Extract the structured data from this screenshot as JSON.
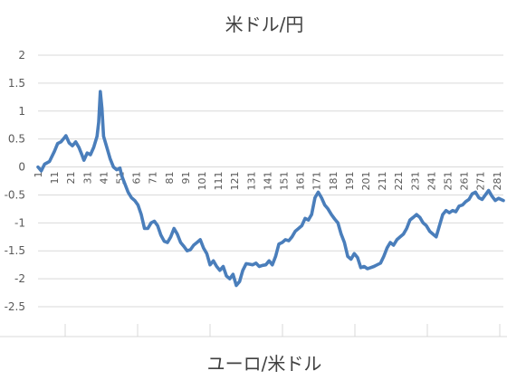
{
  "chart_data": [
    {
      "type": "line",
      "title": "米ドル/円",
      "xlabel": "",
      "ylabel": "",
      "ylim": [
        -2.5,
        2
      ],
      "yticks": [
        "2",
        "1.5",
        "1",
        "0.5",
        "0",
        "-0.5",
        "-1",
        "-1.5",
        "-2",
        "-2.5"
      ],
      "grid": true,
      "legend": "none",
      "x_start": 1,
      "x_end": 285,
      "x_tick_labels": [
        "1",
        "11",
        "21",
        "31",
        "41",
        "51",
        "61",
        "71",
        "81",
        "91",
        "101",
        "111",
        "121",
        "131",
        "141",
        "151",
        "161",
        "171",
        "181",
        "191",
        "201",
        "211",
        "221",
        "231",
        "241",
        "251",
        "261",
        "271",
        "281"
      ],
      "series": [
        {
          "color": "#4a7ebb",
          "points": [
            [
              1,
              0.0
            ],
            [
              3,
              -0.07
            ],
            [
              5,
              0.05
            ],
            [
              8,
              0.1
            ],
            [
              11,
              0.28
            ],
            [
              13,
              0.42
            ],
            [
              15,
              0.45
            ],
            [
              17,
              0.52
            ],
            [
              18,
              0.56
            ],
            [
              20,
              0.43
            ],
            [
              22,
              0.38
            ],
            [
              24,
              0.45
            ],
            [
              26,
              0.35
            ],
            [
              28,
              0.2
            ],
            [
              29,
              0.12
            ],
            [
              31,
              0.25
            ],
            [
              33,
              0.22
            ],
            [
              35,
              0.35
            ],
            [
              37,
              0.55
            ],
            [
              38,
              0.8
            ],
            [
              39,
              1.35
            ],
            [
              40,
              1.05
            ],
            [
              41,
              0.55
            ],
            [
              43,
              0.35
            ],
            [
              45,
              0.15
            ],
            [
              47,
              0.0
            ],
            [
              49,
              -0.05
            ],
            [
              51,
              -0.02
            ],
            [
              52,
              -0.15
            ],
            [
              54,
              -0.3
            ],
            [
              56,
              -0.45
            ],
            [
              58,
              -0.55
            ],
            [
              60,
              -0.6
            ],
            [
              62,
              -0.68
            ],
            [
              64,
              -0.85
            ],
            [
              66,
              -1.1
            ],
            [
              68,
              -1.1
            ],
            [
              70,
              -1.0
            ],
            [
              72,
              -0.97
            ],
            [
              74,
              -1.05
            ],
            [
              76,
              -1.22
            ],
            [
              78,
              -1.33
            ],
            [
              80,
              -1.35
            ],
            [
              82,
              -1.25
            ],
            [
              84,
              -1.1
            ],
            [
              86,
              -1.2
            ],
            [
              88,
              -1.35
            ],
            [
              90,
              -1.42
            ],
            [
              92,
              -1.5
            ],
            [
              94,
              -1.48
            ],
            [
              96,
              -1.4
            ],
            [
              98,
              -1.35
            ],
            [
              100,
              -1.3
            ],
            [
              102,
              -1.45
            ],
            [
              104,
              -1.55
            ],
            [
              106,
              -1.75
            ],
            [
              108,
              -1.68
            ],
            [
              110,
              -1.78
            ],
            [
              112,
              -1.85
            ],
            [
              114,
              -1.78
            ],
            [
              116,
              -1.95
            ],
            [
              118,
              -2.0
            ],
            [
              120,
              -1.92
            ],
            [
              122,
              -2.12
            ],
            [
              124,
              -2.05
            ],
            [
              126,
              -1.85
            ],
            [
              128,
              -1.73
            ],
            [
              130,
              -1.74
            ],
            [
              132,
              -1.75
            ],
            [
              134,
              -1.72
            ],
            [
              136,
              -1.78
            ],
            [
              138,
              -1.76
            ],
            [
              140,
              -1.75
            ],
            [
              142,
              -1.68
            ],
            [
              144,
              -1.75
            ],
            [
              146,
              -1.6
            ],
            [
              148,
              -1.38
            ],
            [
              150,
              -1.35
            ],
            [
              152,
              -1.3
            ],
            [
              154,
              -1.32
            ],
            [
              156,
              -1.25
            ],
            [
              158,
              -1.15
            ],
            [
              160,
              -1.1
            ],
            [
              162,
              -1.05
            ],
            [
              164,
              -0.92
            ],
            [
              166,
              -0.95
            ],
            [
              168,
              -0.85
            ],
            [
              170,
              -0.55
            ],
            [
              172,
              -0.45
            ],
            [
              174,
              -0.55
            ],
            [
              176,
              -0.68
            ],
            [
              178,
              -0.75
            ],
            [
              180,
              -0.85
            ],
            [
              182,
              -0.93
            ],
            [
              184,
              -1.0
            ],
            [
              186,
              -1.2
            ],
            [
              188,
              -1.35
            ],
            [
              190,
              -1.6
            ],
            [
              192,
              -1.65
            ],
            [
              194,
              -1.55
            ],
            [
              196,
              -1.62
            ],
            [
              198,
              -1.8
            ],
            [
              200,
              -1.78
            ],
            [
              202,
              -1.82
            ],
            [
              204,
              -1.8
            ],
            [
              206,
              -1.78
            ],
            [
              208,
              -1.75
            ],
            [
              210,
              -1.72
            ],
            [
              212,
              -1.6
            ],
            [
              214,
              -1.45
            ],
            [
              216,
              -1.35
            ],
            [
              218,
              -1.4
            ],
            [
              220,
              -1.3
            ],
            [
              222,
              -1.25
            ],
            [
              224,
              -1.2
            ],
            [
              226,
              -1.1
            ],
            [
              228,
              -0.95
            ],
            [
              230,
              -0.9
            ],
            [
              232,
              -0.85
            ],
            [
              234,
              -0.9
            ],
            [
              236,
              -1.0
            ],
            [
              238,
              -1.05
            ],
            [
              240,
              -1.15
            ],
            [
              242,
              -1.2
            ],
            [
              244,
              -1.25
            ],
            [
              246,
              -1.05
            ],
            [
              248,
              -0.85
            ],
            [
              250,
              -0.78
            ],
            [
              252,
              -0.82
            ],
            [
              254,
              -0.78
            ],
            [
              256,
              -0.8
            ],
            [
              258,
              -0.7
            ],
            [
              260,
              -0.68
            ],
            [
              262,
              -0.62
            ],
            [
              264,
              -0.58
            ],
            [
              266,
              -0.48
            ],
            [
              268,
              -0.45
            ],
            [
              270,
              -0.55
            ],
            [
              272,
              -0.58
            ],
            [
              274,
              -0.5
            ],
            [
              276,
              -0.42
            ],
            [
              278,
              -0.52
            ],
            [
              280,
              -0.6
            ],
            [
              282,
              -0.56
            ],
            [
              285,
              -0.6
            ]
          ]
        }
      ]
    },
    {
      "type": "line",
      "title": "ユーロ/米ドル",
      "xlabel": "",
      "ylabel": "",
      "series": []
    }
  ]
}
